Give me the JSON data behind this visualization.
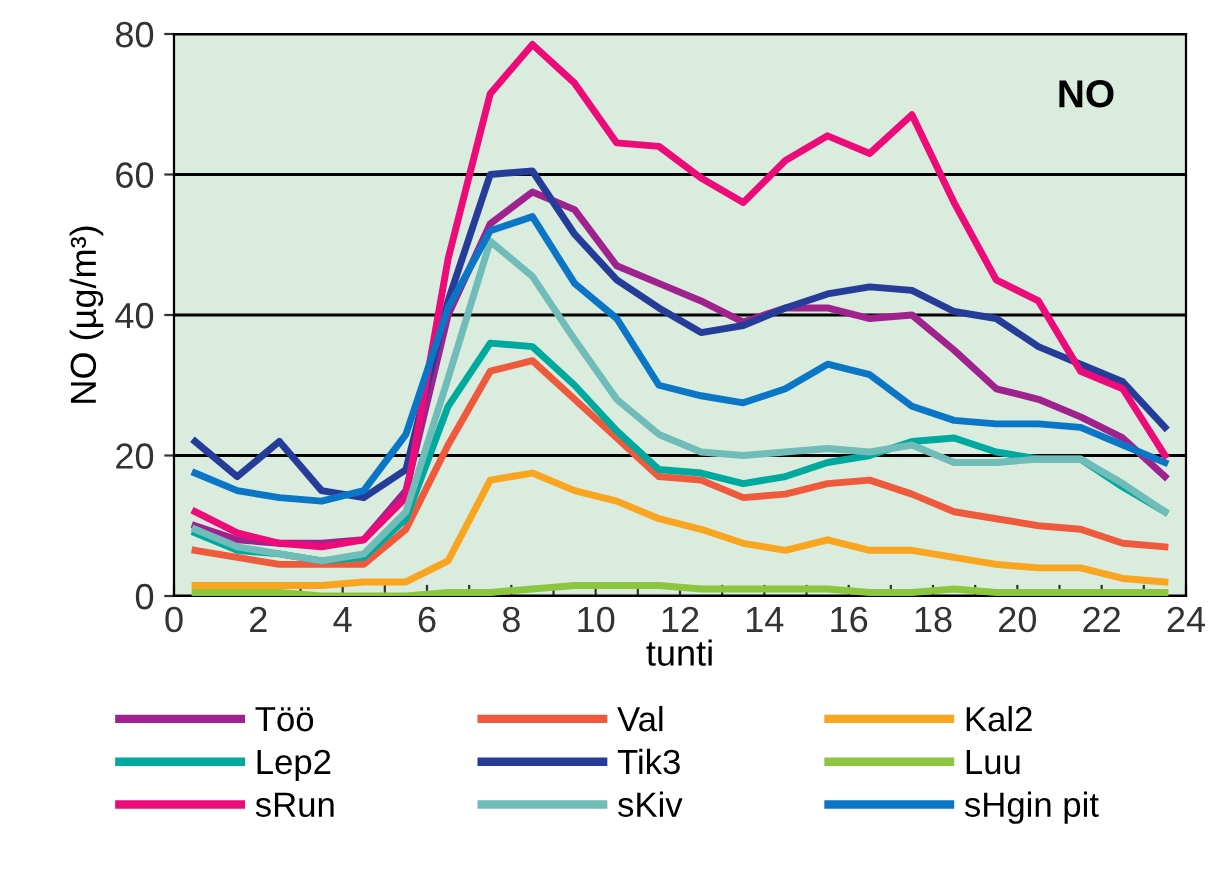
{
  "chart_data": {
    "type": "line",
    "xlabel": "tunti",
    "ylabel": "NO (µg/m³)",
    "annotations": [
      "NO"
    ],
    "x": [
      0.5,
      1.5,
      2.5,
      3.5,
      4.5,
      5.5,
      6.5,
      7.5,
      8.5,
      9.5,
      10.5,
      11.5,
      12.5,
      13.5,
      14.5,
      15.5,
      16.5,
      17.5,
      18.5,
      19.5,
      20.5,
      21.5,
      22.5,
      23.5
    ],
    "xlim": [
      0,
      24
    ],
    "xticks": [
      0,
      {
        "value": 1,
        "label": null
      },
      2,
      {
        "value": 3,
        "label": null
      },
      4,
      {
        "value": 5,
        "label": null
      },
      6,
      {
        "value": 7,
        "label": null
      },
      8,
      {
        "value": 9,
        "label": null
      },
      10,
      {
        "value": 11,
        "label": null
      },
      12,
      {
        "value": 13,
        "label": null
      },
      14,
      {
        "value": 15,
        "label": null
      },
      16,
      {
        "value": 17,
        "label": null
      },
      18,
      {
        "value": 19,
        "label": null
      },
      20,
      {
        "value": 21,
        "label": null
      },
      22,
      {
        "value": 23,
        "label": null
      },
      24
    ],
    "ylim": [
      0,
      80
    ],
    "yticks": [
      0,
      20,
      40,
      60,
      80
    ],
    "grid": "y",
    "legend": "bottom",
    "marker": "none",
    "line_style": "solid",
    "series": [
      {
        "name": "Töö",
        "color": "#a0228f",
        "values": [
          10,
          8,
          7.5,
          7.5,
          8,
          15,
          40,
          53,
          57.5,
          55,
          47,
          44.5,
          42,
          39,
          41,
          41,
          39.5,
          40,
          35,
          29.5,
          28,
          25.5,
          22.5,
          17
        ]
      },
      {
        "name": "Val",
        "color": "#f05a3c",
        "values": [
          6.5,
          5.5,
          4.5,
          4.5,
          4.5,
          9.5,
          21.5,
          32,
          33.5,
          28,
          22.5,
          17,
          16.5,
          14,
          14.5,
          16,
          16.5,
          14.5,
          12,
          11,
          10,
          9.5,
          7.5,
          7
        ]
      },
      {
        "name": "Kal2",
        "color": "#f9a51f",
        "values": [
          1.5,
          1.5,
          1.5,
          1.5,
          2,
          2,
          5,
          16.5,
          17.5,
          15,
          13.5,
          11,
          9.5,
          7.5,
          6.5,
          8,
          6.5,
          6.5,
          5.5,
          4.5,
          4,
          4,
          2.5,
          2
        ]
      },
      {
        "name": "Lep2",
        "color": "#00a99d",
        "values": [
          9,
          6.5,
          6,
          5,
          5.5,
          11,
          27,
          36,
          35.5,
          30,
          23.5,
          18,
          17.5,
          16,
          17,
          19,
          20,
          22,
          22.5,
          20.5,
          19.5,
          19.5,
          15.5,
          12
        ]
      },
      {
        "name": "Tik3",
        "color": "#263c99",
        "values": [
          22,
          17,
          22,
          15,
          14,
          18,
          42,
          60,
          60.5,
          51.5,
          45,
          41,
          37.5,
          38.5,
          41,
          43,
          44,
          43.5,
          40.5,
          39.5,
          35.5,
          33,
          30.5,
          24
        ]
      },
      {
        "name": "Luu",
        "color": "#8cc63f",
        "values": [
          0.5,
          0.5,
          0.5,
          0,
          0,
          0,
          0.5,
          0.5,
          1,
          1.5,
          1.5,
          1.5,
          1,
          1,
          1,
          1,
          0.5,
          0.5,
          1,
          0.5,
          0.5,
          0.5,
          0.5,
          0.5
        ]
      },
      {
        "name": "sRun",
        "color": "#ec0b79",
        "values": [
          12,
          9,
          7.5,
          7,
          8,
          14,
          48,
          71.5,
          78.5,
          73,
          64.5,
          64,
          59.5,
          56,
          62,
          65.5,
          63,
          68.5,
          56,
          45,
          42,
          32,
          29.5,
          20
        ]
      },
      {
        "name": "sKiv",
        "color": "#6fbcb8",
        "values": [
          9.5,
          7,
          6,
          5,
          6,
          12,
          31,
          50.5,
          45.5,
          36.5,
          28,
          23,
          20.5,
          20,
          20.5,
          21,
          20.5,
          21.5,
          19,
          19,
          19.5,
          19.5,
          16,
          12
        ]
      },
      {
        "name": "sHgin pit",
        "color": "#0b76c5",
        "values": [
          17.5,
          15,
          14,
          13.5,
          15,
          23,
          41,
          52,
          54,
          44.5,
          39.5,
          30,
          28.5,
          27.5,
          29.5,
          33,
          31.5,
          27,
          25,
          24.5,
          24.5,
          24,
          21.5,
          19
        ]
      }
    ]
  }
}
